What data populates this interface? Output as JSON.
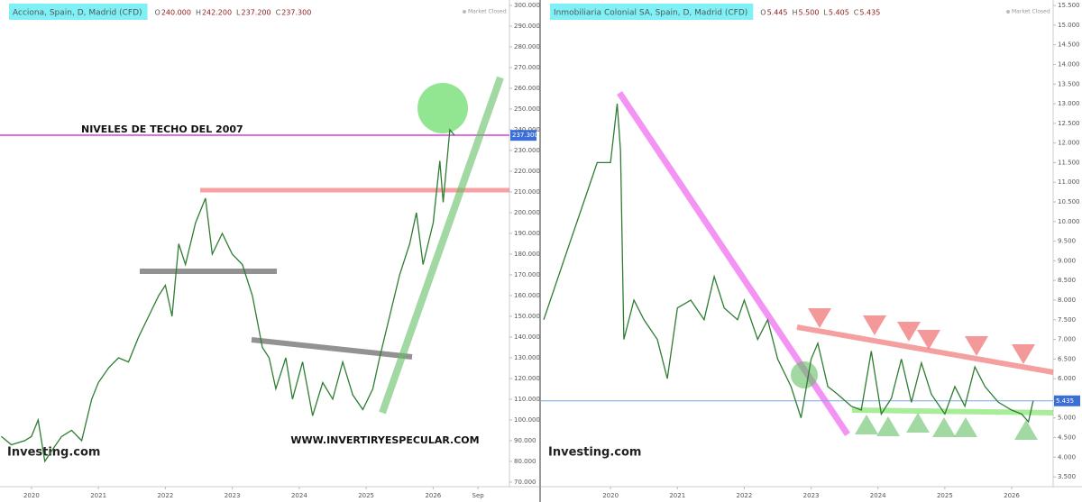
{
  "chart_data": [
    {
      "type": "line",
      "title": "Acciona, Spain, D, Madrid (CFD)",
      "status": "Market Closed",
      "ohlc_keys": [
        "O",
        "H",
        "L",
        "C"
      ],
      "ohlc": [
        {
          "value": 240,
          "label": "240.000"
        },
        {
          "value": 242.2,
          "label": "242.200"
        },
        {
          "value": 237.2,
          "label": "237.200"
        },
        {
          "value": 237.3,
          "label": "237.300"
        }
      ],
      "last": {
        "value": 237.3,
        "label": "237.300"
      },
      "annotations": [
        "NIVELES DE TECHO DEL 2007",
        "WWW.INVERTIRYESPECULAR.COM"
      ],
      "logo": "Investing.com",
      "color": "#2e7d32",
      "x": [
        2019.55,
        2019.7,
        2019.9,
        2020.0,
        2020.1,
        2020.2,
        2020.3,
        2020.45,
        2020.6,
        2020.75,
        2020.9,
        2021.0,
        2021.15,
        2021.3,
        2021.45,
        2021.6,
        2021.75,
        2021.9,
        2022.0,
        2022.1,
        2022.2,
        2022.3,
        2022.45,
        2022.6,
        2022.7,
        2022.85,
        2023.0,
        2023.15,
        2023.3,
        2023.45,
        2023.55,
        2023.65,
        2023.8,
        2023.9,
        2024.05,
        2024.2,
        2024.35,
        2024.5,
        2024.65,
        2024.8,
        2024.95,
        2025.1,
        2025.2,
        2025.35,
        2025.5,
        2025.65,
        2025.75,
        2025.85,
        2026.0,
        2026.1,
        2026.15,
        2026.25,
        2026.32
      ],
      "values": [
        92,
        88,
        90,
        92,
        100,
        80,
        85,
        92,
        95,
        90,
        110,
        118,
        125,
        130,
        128,
        140,
        150,
        160,
        165,
        150,
        185,
        175,
        195,
        207,
        180,
        190,
        180,
        175,
        160,
        135,
        130,
        115,
        130,
        110,
        128,
        102,
        118,
        110,
        128,
        112,
        105,
        115,
        130,
        150,
        170,
        185,
        200,
        175,
        195,
        225,
        205,
        240,
        237.3
      ],
      "xlim": [
        2019.53,
        2027.14
      ],
      "ylim": [
        67.8,
        302.6
      ],
      "xticks": [
        2020,
        2021,
        2022,
        2023,
        2024,
        2025,
        2026,
        {
          "value": 2026.67,
          "label": "Sep"
        }
      ],
      "yticks": [
        {
          "value": 70,
          "label": "70.000"
        },
        {
          "value": 80,
          "label": "80.000"
        },
        {
          "value": 90,
          "label": "90.000"
        },
        {
          "value": 100,
          "label": "100.000"
        },
        {
          "value": 110,
          "label": "110.000"
        },
        {
          "value": 120,
          "label": "120.000"
        },
        {
          "value": 130,
          "label": "130.000"
        },
        {
          "value": 140,
          "label": "140.000"
        },
        {
          "value": 150,
          "label": "150.000"
        },
        {
          "value": 160,
          "label": "160.000"
        },
        {
          "value": 170,
          "label": "170.000"
        },
        {
          "value": 180,
          "label": "180.000"
        },
        {
          "value": 190,
          "label": "190.000"
        },
        {
          "value": 200,
          "label": "200.000"
        },
        {
          "value": 210,
          "label": "210.000"
        },
        {
          "value": 220,
          "label": "220.000"
        },
        {
          "value": 230,
          "label": "230.000"
        },
        {
          "value": 240,
          "label": "240.000"
        },
        {
          "value": 250,
          "label": "250.000"
        },
        {
          "value": 260,
          "label": "260.000"
        },
        {
          "value": 270,
          "label": "270.000"
        },
        {
          "value": 280,
          "label": "280.000"
        },
        {
          "value": 290,
          "label": "290.000"
        },
        {
          "value": 300,
          "label": "300.000"
        }
      ]
    },
    {
      "type": "line",
      "title": "Inmobiliaria Colonial SA, Spain, D, Madrid (CFD)",
      "status": "Market Closed",
      "ohlc_keys": [
        "O",
        "H",
        "L",
        "C"
      ],
      "ohlc": [
        {
          "value": 5.445,
          "label": "5.445"
        },
        {
          "value": 5.5,
          "label": "5.500"
        },
        {
          "value": 5.405,
          "label": "5.405"
        },
        {
          "value": 5.435,
          "label": "5.435"
        }
      ],
      "last": {
        "value": 5.435,
        "label": "5.435"
      },
      "logo": "Investing.com",
      "color": "#2e7d32",
      "x": [
        2019.0,
        2019.2,
        2019.4,
        2019.6,
        2019.8,
        2020.0,
        2020.1,
        2020.15,
        2020.2,
        2020.35,
        2020.5,
        2020.7,
        2020.85,
        2021.0,
        2021.2,
        2021.4,
        2021.55,
        2021.7,
        2021.9,
        2022.0,
        2022.2,
        2022.35,
        2022.5,
        2022.7,
        2022.85,
        2023.0,
        2023.1,
        2023.25,
        2023.4,
        2023.6,
        2023.75,
        2023.9,
        2024.05,
        2024.2,
        2024.35,
        2024.5,
        2024.65,
        2024.8,
        2025.0,
        2025.15,
        2025.3,
        2025.45,
        2025.6,
        2025.8,
        2026.0,
        2026.15,
        2026.25,
        2026.32
      ],
      "values": [
        7.5,
        8.5,
        9.5,
        10.5,
        11.5,
        11.5,
        13.0,
        11.8,
        7.0,
        8.0,
        7.5,
        7.0,
        6.0,
        7.8,
        8.0,
        7.5,
        8.6,
        7.8,
        7.5,
        8.0,
        7.0,
        7.5,
        6.5,
        5.8,
        5.0,
        6.5,
        6.9,
        5.8,
        5.6,
        5.3,
        5.2,
        6.7,
        5.1,
        5.5,
        6.5,
        5.4,
        6.4,
        5.6,
        5.1,
        5.8,
        5.3,
        6.3,
        5.8,
        5.4,
        5.2,
        5.1,
        4.9,
        5.435
      ],
      "xlim": [
        2018.96,
        2026.62
      ],
      "ylim": [
        3.25,
        15.64
      ],
      "xticks": [
        2020,
        2021,
        2022,
        2023,
        2024,
        2025,
        2026
      ],
      "yticks": [
        {
          "value": 3.5,
          "label": "3.500"
        },
        {
          "value": 4,
          "label": "4.000"
        },
        {
          "value": 4.5,
          "label": "4.500"
        },
        {
          "value": 5,
          "label": "5.000"
        },
        {
          "value": 5.5,
          "label": "5.500"
        },
        {
          "value": 6,
          "label": "6.000"
        },
        {
          "value": 6.5,
          "label": "6.500"
        },
        {
          "value": 7,
          "label": "7.000"
        },
        {
          "value": 7.5,
          "label": "7.500"
        },
        {
          "value": 8,
          "label": "8.000"
        },
        {
          "value": 8.5,
          "label": "8.500"
        },
        {
          "value": 9,
          "label": "9.000"
        },
        {
          "value": 9.5,
          "label": "9.500"
        },
        {
          "value": 10,
          "label": "10.000"
        },
        {
          "value": 10.5,
          "label": "10.500"
        },
        {
          "value": 11,
          "label": "11.000"
        },
        {
          "value": 11.5,
          "label": "11.500"
        },
        {
          "value": 12,
          "label": "12.000"
        },
        {
          "value": 12.5,
          "label": "12.500"
        },
        {
          "value": 13,
          "label": "13.000"
        },
        {
          "value": 13.5,
          "label": "13.500"
        },
        {
          "value": 14,
          "label": "14.000"
        },
        {
          "value": 14.5,
          "label": "14.500"
        },
        {
          "value": 15,
          "label": "15.000"
        },
        {
          "value": 15.5,
          "label": "15.500"
        }
      ]
    }
  ]
}
